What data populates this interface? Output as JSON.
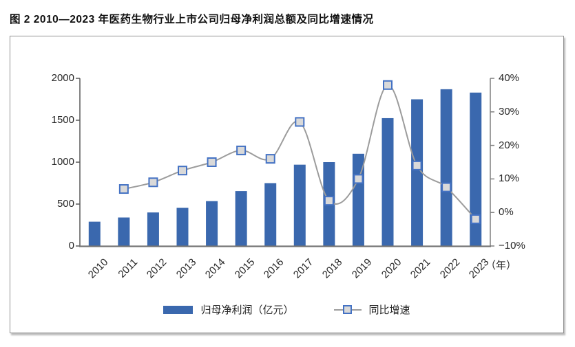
{
  "figure": {
    "title": "图 2  2010—2023 年医药生物行业上市公司归母净利润总额及同比增速情况",
    "x_unit_label": "（年）"
  },
  "legend": {
    "bar_label": "归母净利润（亿元）",
    "line_label": "同比增速"
  },
  "chart_data": {
    "type": "bar",
    "subtype": "bar-line-combo",
    "title": "2010—2023 年医药生物行业上市公司归母净利润总额及同比增速情况",
    "categories": [
      "2010",
      "2011",
      "2012",
      "2013",
      "2014",
      "2015",
      "2016",
      "2017",
      "2018",
      "2019",
      "2020",
      "2021",
      "2022",
      "2023"
    ],
    "series": [
      {
        "name": "归母净利润（亿元）",
        "type": "bar",
        "axis": "left",
        "color": "#3a68ae",
        "values": [
          290,
          340,
          400,
          455,
          535,
          655,
          750,
          970,
          1000,
          1100,
          1525,
          1750,
          1870,
          1830
        ]
      },
      {
        "name": "同比增速",
        "type": "line",
        "axis": "right",
        "color": "#9c9c9c",
        "marker": "square",
        "marker_fill": "#d9d9d9",
        "marker_border": "#4472c4",
        "values": [
          null,
          7,
          9,
          12.5,
          15,
          18.5,
          16,
          27,
          3.5,
          10,
          38,
          14,
          7.5,
          -2
        ]
      }
    ],
    "left_axis": {
      "min": 0,
      "max": 2000,
      "ticks": [
        0,
        500,
        1000,
        1500,
        2000
      ],
      "tick_labels": [
        "0",
        "500",
        "1000",
        "1500",
        "2000"
      ]
    },
    "right_axis": {
      "min": -10,
      "max": 40,
      "ticks": [
        -10,
        0,
        10,
        20,
        30,
        40
      ],
      "tick_labels": [
        "−10%",
        "0%",
        "10%",
        "20%",
        "30%",
        "40%"
      ]
    },
    "xlabel": "（年）",
    "ylabel": "",
    "grid": false,
    "legend_position": "bottom"
  }
}
